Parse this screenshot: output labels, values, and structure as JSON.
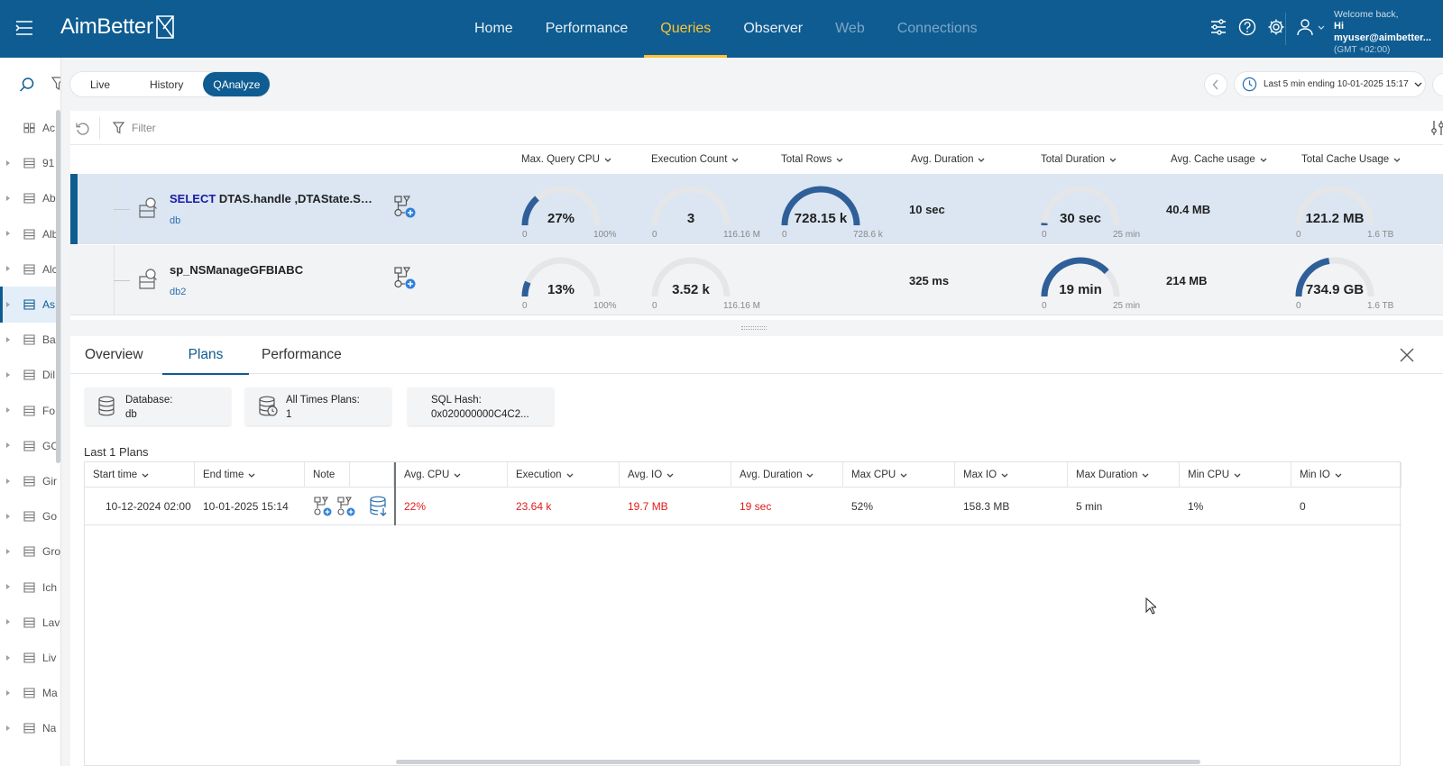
{
  "app": {
    "brand": "AimBetter"
  },
  "nav": [
    {
      "label": "Home",
      "state": "normal"
    },
    {
      "label": "Performance",
      "state": "normal"
    },
    {
      "label": "Queries",
      "state": "active"
    },
    {
      "label": "Observer",
      "state": "normal"
    },
    {
      "label": "Web",
      "state": "dim"
    },
    {
      "label": "Connections",
      "state": "dim"
    }
  ],
  "header_icons": [
    "sliders-icon",
    "help-icon",
    "gear-icon"
  ],
  "user": {
    "welcome": "Welcome back,",
    "name": "Hi myuser@aimbetter...",
    "timezone": "(GMT +02:00)"
  },
  "sidebar": {
    "items": [
      {
        "label": "Ac",
        "icon": "grid-icon",
        "caret": false,
        "selected": false
      },
      {
        "label": "91",
        "icon": "server-icon",
        "caret": true,
        "selected": false
      },
      {
        "label": "Ab",
        "icon": "server-icon",
        "caret": true,
        "selected": false
      },
      {
        "label": "Alb",
        "icon": "server-icon",
        "caret": true,
        "selected": false
      },
      {
        "label": "Alc",
        "icon": "server-icon",
        "caret": true,
        "selected": false
      },
      {
        "label": "As",
        "icon": "server-icon",
        "caret": true,
        "selected": true
      },
      {
        "label": "Ba",
        "icon": "server-icon",
        "caret": true,
        "selected": false
      },
      {
        "label": "Dil",
        "icon": "server-icon",
        "caret": true,
        "selected": false
      },
      {
        "label": "Fo:",
        "icon": "server-icon",
        "caret": true,
        "selected": false
      },
      {
        "label": "GC",
        "icon": "server-icon",
        "caret": true,
        "selected": false
      },
      {
        "label": "Gir",
        "icon": "server-icon",
        "caret": true,
        "selected": false
      },
      {
        "label": "Go",
        "icon": "server-icon",
        "caret": true,
        "selected": false
      },
      {
        "label": "Gro",
        "icon": "server-icon",
        "caret": true,
        "selected": false
      },
      {
        "label": "Ich",
        "icon": "server-icon",
        "caret": true,
        "selected": false
      },
      {
        "label": "Lav",
        "icon": "server-icon",
        "caret": true,
        "selected": false
      },
      {
        "label": "Liv",
        "icon": "server-icon",
        "caret": true,
        "selected": false
      },
      {
        "label": "Ma",
        "icon": "server-icon",
        "caret": true,
        "selected": false
      },
      {
        "label": "Na",
        "icon": "server-icon",
        "caret": true,
        "selected": false
      }
    ]
  },
  "mode_tabs": [
    {
      "label": "Live",
      "active": false
    },
    {
      "label": "History",
      "active": false
    },
    {
      "label": "QAnalyze",
      "active": true
    }
  ],
  "time_range": {
    "label": "Last 5 min ending  10-01-2025 15:17"
  },
  "filter": {
    "placeholder": "Filter"
  },
  "columns": [
    "Max. Query CPU",
    "Execution Count",
    "Total Rows",
    "Avg. Duration",
    "Total Duration",
    "Avg. Cache usage",
    "Total Cache Usage"
  ],
  "queries": [
    {
      "keyword": "SELECT",
      "name_rest": " DTAS.handle ,DTAState.ServerName",
      "db": "db",
      "selected": true,
      "max_cpu": {
        "value": "27%",
        "min": "0",
        "max": "100%",
        "fraction": 0.27
      },
      "exec_count": {
        "value": "3",
        "min": "0",
        "max": "116.16 M",
        "fraction": 0.0
      },
      "total_rows": {
        "value": "728.15 k",
        "min": "0",
        "max": "728.6 k",
        "fraction": 1.0
      },
      "avg_duration": "10 sec",
      "total_duration": {
        "value": "30 sec",
        "min": "0",
        "max": "25 min",
        "fraction": 0.02
      },
      "avg_cache": "40.4 MB",
      "total_cache": {
        "value": "121.2 MB",
        "min": "0",
        "max": "1.6 TB",
        "fraction": 0.0
      }
    },
    {
      "keyword": "",
      "name_rest": "sp_NSManageGFBIABC",
      "db": "db2",
      "selected": false,
      "max_cpu": {
        "value": "13%",
        "min": "0",
        "max": "100%",
        "fraction": 0.13
      },
      "exec_count": {
        "value": "3.52 k",
        "min": "0",
        "max": "116.16 M",
        "fraction": 0.0
      },
      "total_rows": null,
      "avg_duration": "325 ms",
      "total_duration": {
        "value": "19 min",
        "min": "0",
        "max": "25 min",
        "fraction": 0.76
      },
      "avg_cache": "214 MB",
      "total_cache": {
        "value": "734.9 GB",
        "min": "0",
        "max": "1.6 TB",
        "fraction": 0.45
      }
    }
  ],
  "detail": {
    "tabs": [
      {
        "label": "Overview",
        "active": false
      },
      {
        "label": "Plans",
        "active": true
      },
      {
        "label": "Performance",
        "active": false
      }
    ],
    "cards": [
      {
        "key": "Database:",
        "value": "db"
      },
      {
        "key": "All Times Plans:",
        "value": "1"
      },
      {
        "key": "SQL Hash:",
        "value": "0x020000000C4C2..."
      }
    ],
    "plans_title": "Last 1 Plans",
    "plan_headers": [
      "Start time",
      "End time",
      "Note",
      "",
      "Avg. CPU",
      "Execution",
      "Avg. IO",
      "Avg. Duration",
      "Max CPU",
      "Max IO",
      "Max Duration",
      "Min CPU",
      "Min IO"
    ],
    "plan_rows": [
      {
        "start": "10-12-2024 02:00",
        "end": "10-01-2025 15:14",
        "avg_cpu": "22%",
        "execution": "23.64 k",
        "avg_io": "19.7 MB",
        "avg_duration": "19 sec",
        "max_cpu": "52%",
        "max_io": "158.3 MB",
        "max_duration": "5 min",
        "min_cpu": "1%",
        "min_io": "0"
      }
    ]
  },
  "colors": {
    "header_bg": "#0e5c91",
    "active_nav": "#ffc233",
    "gauge_fill": "#2f5f98",
    "gauge_track": "#e5e6e8",
    "alert_red": "#e31a1a",
    "link_blue": "#2a6fb0"
  }
}
